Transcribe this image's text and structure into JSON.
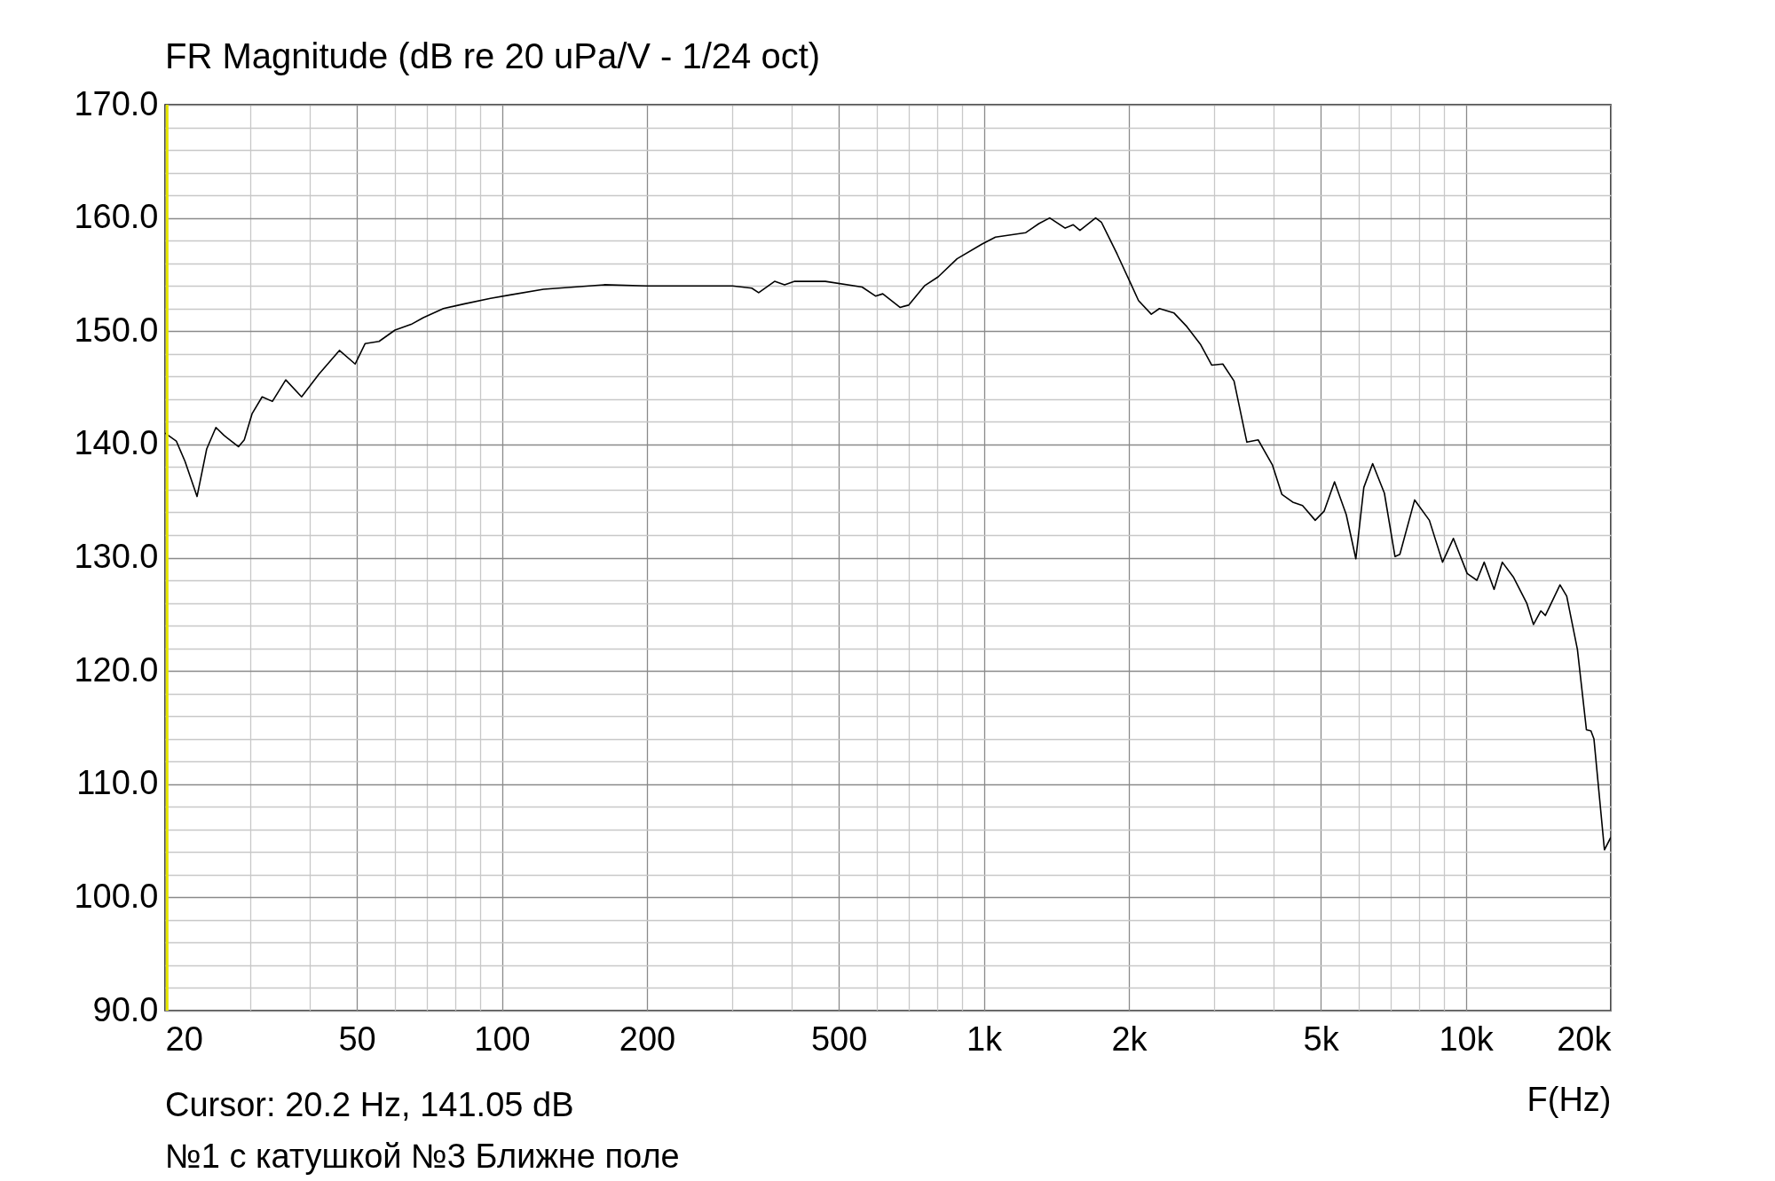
{
  "chart_data": {
    "type": "line",
    "title": "FR Magnitude (dB re 20 uPa/V - 1/24 oct)",
    "xlabel": "F(Hz)",
    "log": "x",
    "grid": true,
    "annotations": [
      "Cursor: 20.2 Hz, 141.05 dB",
      "№1 с катушкой №3 Ближне поле"
    ],
    "xlim": [
      20,
      20000
    ],
    "xticks": [
      {
        "value": 20,
        "label": "20"
      },
      {
        "value": 30,
        "label": null
      },
      {
        "value": 40,
        "label": null
      },
      {
        "value": 50,
        "label": "50"
      },
      {
        "value": 60,
        "label": null
      },
      {
        "value": 70,
        "label": null
      },
      {
        "value": 80,
        "label": null
      },
      {
        "value": 90,
        "label": null
      },
      {
        "value": 100,
        "label": "100"
      },
      {
        "value": 200,
        "label": "200"
      },
      {
        "value": 300,
        "label": null
      },
      {
        "value": 400,
        "label": null
      },
      {
        "value": 500,
        "label": "500"
      },
      {
        "value": 600,
        "label": null
      },
      {
        "value": 700,
        "label": null
      },
      {
        "value": 800,
        "label": null
      },
      {
        "value": 900,
        "label": null
      },
      {
        "value": 1000,
        "label": "1k"
      },
      {
        "value": 2000,
        "label": "2k"
      },
      {
        "value": 3000,
        "label": null
      },
      {
        "value": 4000,
        "label": null
      },
      {
        "value": 5000,
        "label": "5k"
      },
      {
        "value": 6000,
        "label": null
      },
      {
        "value": 7000,
        "label": null
      },
      {
        "value": 8000,
        "label": null
      },
      {
        "value": 9000,
        "label": null
      },
      {
        "value": 10000,
        "label": "10k"
      },
      {
        "value": 20000,
        "label": "20k"
      }
    ],
    "ylim": [
      90,
      170
    ],
    "yticks": [
      {
        "value": 90,
        "label": "90.0"
      },
      {
        "value": 92,
        "label": null
      },
      {
        "value": 94,
        "label": null
      },
      {
        "value": 96,
        "label": null
      },
      {
        "value": 98,
        "label": null
      },
      {
        "value": 100,
        "label": "100.0"
      },
      {
        "value": 102,
        "label": null
      },
      {
        "value": 104,
        "label": null
      },
      {
        "value": 106,
        "label": null
      },
      {
        "value": 108,
        "label": null
      },
      {
        "value": 110,
        "label": "110.0"
      },
      {
        "value": 112,
        "label": null
      },
      {
        "value": 114,
        "label": null
      },
      {
        "value": 116,
        "label": null
      },
      {
        "value": 118,
        "label": null
      },
      {
        "value": 120,
        "label": "120.0"
      },
      {
        "value": 122,
        "label": null
      },
      {
        "value": 124,
        "label": null
      },
      {
        "value": 126,
        "label": null
      },
      {
        "value": 128,
        "label": null
      },
      {
        "value": 130,
        "label": "130.0"
      },
      {
        "value": 132,
        "label": null
      },
      {
        "value": 134,
        "label": null
      },
      {
        "value": 136,
        "label": null
      },
      {
        "value": 138,
        "label": null
      },
      {
        "value": 140,
        "label": "140.0"
      },
      {
        "value": 142,
        "label": null
      },
      {
        "value": 144,
        "label": null
      },
      {
        "value": 146,
        "label": null
      },
      {
        "value": 148,
        "label": null
      },
      {
        "value": 150,
        "label": "150.0"
      },
      {
        "value": 152,
        "label": null
      },
      {
        "value": 154,
        "label": null
      },
      {
        "value": 156,
        "label": null
      },
      {
        "value": 158,
        "label": null
      },
      {
        "value": 160,
        "label": "160.0"
      },
      {
        "value": 162,
        "label": null
      },
      {
        "value": 164,
        "label": null
      },
      {
        "value": 166,
        "label": null
      },
      {
        "value": 168,
        "label": null
      },
      {
        "value": 170,
        "label": "170.0"
      }
    ],
    "ref_lines": [
      {
        "axis": "x",
        "value": 20.2,
        "color": "#e6e600"
      }
    ],
    "series": [
      {
        "color": "#000000",
        "x": [
          20,
          21.1,
          22,
          23.3,
          24.4,
          25.5,
          26.5,
          28.4,
          29.2,
          30.3,
          31.8,
          33.4,
          35.6,
          38.4,
          41.7,
          46,
          49.6,
          52,
          55.6,
          60,
          64.8,
          68.7,
          75.6,
          83.3,
          94.7,
          104,
          122,
          163,
          200,
          301,
          330,
          341,
          368,
          386,
          405,
          469,
          559,
          596,
          617,
          670,
          698,
          753,
          804,
          880,
          992,
          1057,
          1222,
          1301,
          1370,
          1475,
          1533,
          1583,
          1706,
          1755,
          1891,
          2013,
          2094,
          2226,
          2314,
          2482,
          2639,
          2819,
          2972,
          3133,
          3305,
          3514,
          3709,
          3969,
          4153,
          4376,
          4585,
          4871,
          5082,
          5342,
          5650,
          5915,
          6145,
          6410,
          6779,
          7131,
          7300,
          7834,
          8405,
          8950,
          9426,
          10070,
          10550,
          10920,
          11450,
          11910,
          12550,
          13380,
          13820,
          14320,
          14630,
          15690,
          16200,
          17050,
          17800,
          18190,
          18450,
          19400,
          20000
        ],
        "values": [
          141.0,
          140.3,
          138.5,
          135.4,
          139.6,
          141.5,
          140.8,
          139.8,
          140.4,
          142.7,
          144.2,
          143.8,
          145.7,
          144.2,
          146.2,
          148.3,
          147.1,
          148.9,
          149.1,
          150.1,
          150.6,
          151.2,
          152.0,
          152.4,
          152.9,
          153.2,
          153.7,
          154.1,
          154.0,
          154.0,
          153.8,
          153.4,
          154.4,
          154.1,
          154.4,
          154.4,
          153.9,
          153.1,
          153.3,
          152.1,
          152.3,
          154.0,
          154.8,
          156.4,
          157.7,
          158.3,
          158.7,
          159.5,
          160.0,
          159.1,
          159.4,
          158.9,
          160.0,
          159.6,
          156.8,
          154.3,
          152.7,
          151.5,
          152.0,
          151.6,
          150.4,
          148.8,
          147.0,
          147.1,
          145.6,
          140.2,
          140.4,
          138.2,
          135.6,
          134.9,
          134.6,
          133.3,
          134.1,
          136.7,
          133.8,
          129.9,
          136.2,
          138.3,
          135.7,
          130.1,
          130.3,
          135.1,
          133.3,
          129.6,
          131.7,
          128.6,
          128.0,
          129.6,
          127.2,
          129.6,
          128.3,
          126.0,
          124.1,
          125.3,
          124.9,
          127.6,
          126.6,
          121.9,
          114.8,
          114.7,
          114.0,
          104.2,
          105.3
        ]
      }
    ]
  }
}
